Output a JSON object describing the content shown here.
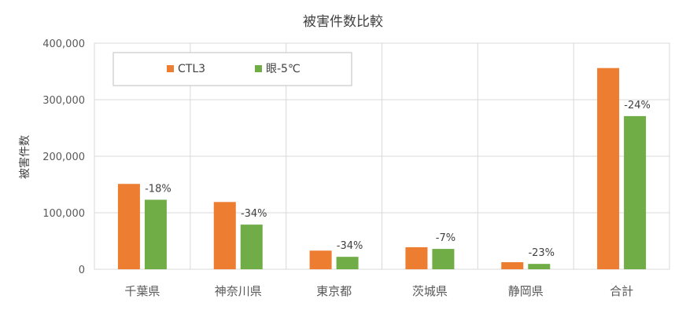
{
  "chart_data": {
    "type": "bar",
    "title": "被害件数比較",
    "ylabel": "被害件数",
    "xlabel": "",
    "ylim": [
      0,
      400000
    ],
    "yticks": [
      0,
      100000,
      200000,
      300000,
      400000
    ],
    "ytick_labels": [
      "0",
      "100,000",
      "200,000",
      "300,000",
      "400,000"
    ],
    "categories": [
      "千葉県",
      "神奈川県",
      "東京都",
      "茨城県",
      "静岡県",
      "合計"
    ],
    "series": [
      {
        "name": "CTL3",
        "color": "#ED7D31",
        "values": [
          151000,
          119000,
          33000,
          39000,
          12500,
          356000
        ]
      },
      {
        "name": "眼-5℃",
        "color": "#70AD47",
        "values": [
          123000,
          79000,
          22000,
          36000,
          9500,
          271000
        ]
      }
    ],
    "change_labels": [
      "-18%",
      "-34%",
      "-34%",
      "-7%",
      "-23%",
      "-24%"
    ],
    "grid": true,
    "legend_position": "top-left"
  }
}
